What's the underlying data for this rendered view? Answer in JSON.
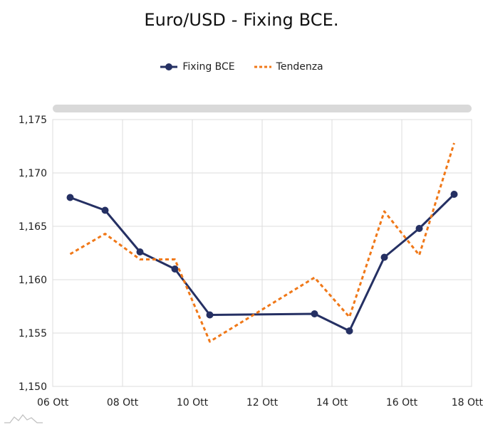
{
  "chart_data": {
    "type": "line",
    "title": "Euro/USD - Fixing BCE.",
    "xlabel": "",
    "ylabel": "",
    "legend_position": "top-center",
    "grid": true,
    "x_ticks": [
      "06 Ott",
      "08 Ott",
      "10 Ott",
      "12 Ott",
      "14 Ott",
      "16 Ott",
      "18 Ott"
    ],
    "y_ticks": [
      "1,150",
      "1,155",
      "1,160",
      "1,165",
      "1,170",
      "1,175"
    ],
    "ylim": [
      1.15,
      1.175
    ],
    "xlim": [
      "2025-10-06",
      "2025-10-18"
    ],
    "series": [
      {
        "name": "Fixing BCE",
        "style": "solid-markers",
        "color": "#253063",
        "points": [
          {
            "x": "2025-10-06",
            "y": 1.1677
          },
          {
            "x": "2025-10-07",
            "y": 1.1665
          },
          {
            "x": "2025-10-08",
            "y": 1.1626
          },
          {
            "x": "2025-10-09",
            "y": 1.161
          },
          {
            "x": "2025-10-10",
            "y": 1.1567
          },
          {
            "x": "2025-10-13",
            "y": 1.1568
          },
          {
            "x": "2025-10-14",
            "y": 1.1552
          },
          {
            "x": "2025-10-15",
            "y": 1.1621
          },
          {
            "x": "2025-10-16",
            "y": 1.1648
          },
          {
            "x": "2025-10-17",
            "y": 1.168
          }
        ]
      },
      {
        "name": "Tendenza",
        "style": "dotted",
        "color": "#f07818",
        "points": [
          {
            "x": "2025-10-06",
            "y": 1.1624
          },
          {
            "x": "2025-10-07",
            "y": 1.1643
          },
          {
            "x": "2025-10-08",
            "y": 1.1619
          },
          {
            "x": "2025-10-09",
            "y": 1.1619
          },
          {
            "x": "2025-10-10",
            "y": 1.1542
          },
          {
            "x": "2025-10-13",
            "y": 1.1602
          },
          {
            "x": "2025-10-14",
            "y": 1.1565
          },
          {
            "x": "2025-10-15",
            "y": 1.1664
          },
          {
            "x": "2025-10-16",
            "y": 1.1623
          },
          {
            "x": "2025-10-17",
            "y": 1.1728
          }
        ]
      }
    ]
  }
}
